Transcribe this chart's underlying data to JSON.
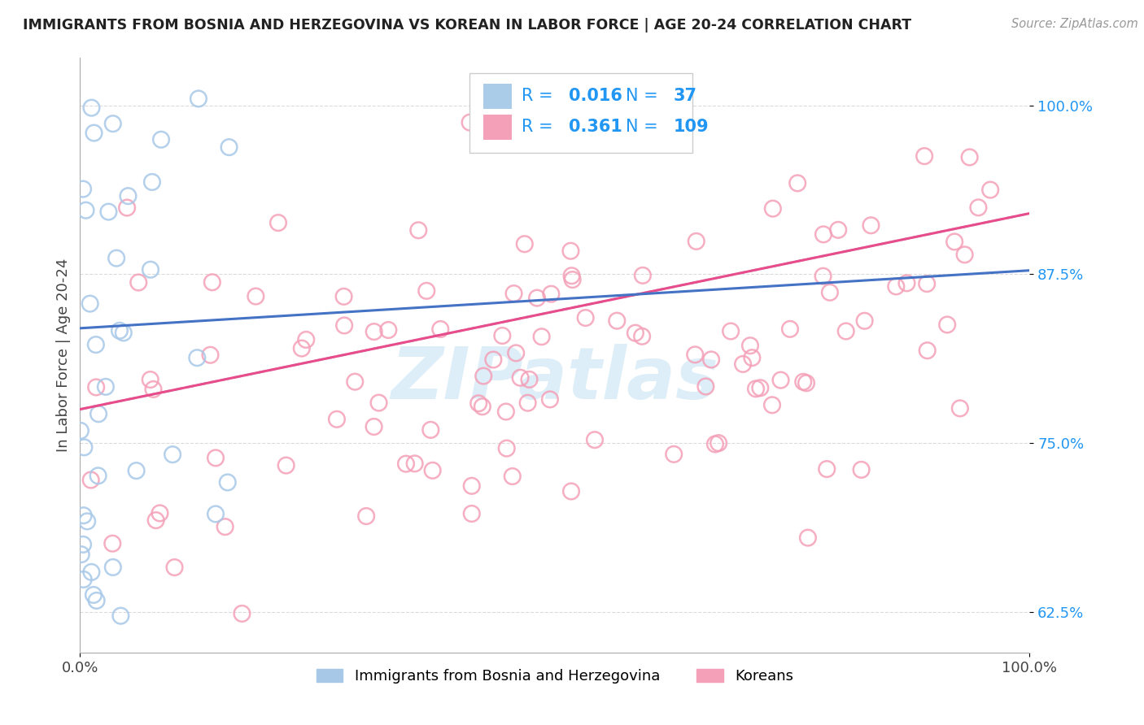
{
  "title": "IMMIGRANTS FROM BOSNIA AND HERZEGOVINA VS KOREAN IN LABOR FORCE | AGE 20-24 CORRELATION CHART",
  "source": "Source: ZipAtlas.com",
  "ylabel": "In Labor Force | Age 20-24",
  "xlim": [
    0.0,
    1.0
  ],
  "ylim": [
    0.595,
    1.035
  ],
  "x_tick_labels": [
    "0.0%",
    "100.0%"
  ],
  "y_ticks": [
    0.625,
    0.75,
    0.875,
    1.0
  ],
  "y_tick_labels": [
    "62.5%",
    "75.0%",
    "87.5%",
    "100.0%"
  ],
  "bosnia_color": "#a8c8e8",
  "korean_color": "#f4a0b8",
  "bosnia_R": 0.016,
  "bosnia_N": 37,
  "korean_R": 0.361,
  "korean_N": 109,
  "bosnia_line_color": "#4472C4",
  "korean_line_color": "#E84C8B",
  "korean_dash_color": "#8ab4d8",
  "legend_blue_color": "#2196F3",
  "legend_pink_color": "#E84C8B",
  "watermark_color": "#ddeef8",
  "tick_color": "#2196F3",
  "grid_color": "#cccccc"
}
